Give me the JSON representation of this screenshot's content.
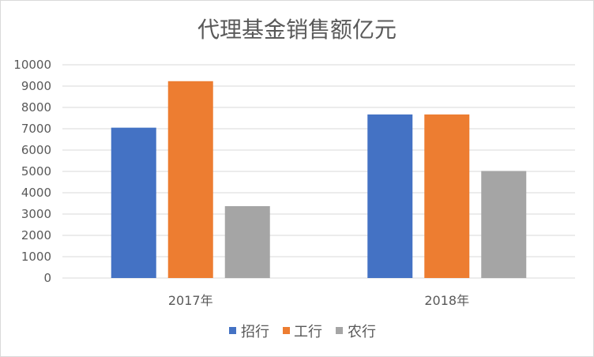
{
  "chart_data": {
    "type": "bar",
    "title": "代理基金销售额亿元",
    "categories": [
      "2017年",
      "2018年"
    ],
    "series": [
      {
        "name": "招行",
        "values": [
          7050,
          7670
        ],
        "color": "#4472c4"
      },
      {
        "name": "工行",
        "values": [
          9230,
          7670
        ],
        "color": "#ed7d31"
      },
      {
        "name": "农行",
        "values": [
          3370,
          5020
        ],
        "color": "#a5a5a5"
      }
    ],
    "ylim": [
      0,
      10000
    ],
    "yticks": [
      0,
      1000,
      2000,
      3000,
      4000,
      5000,
      6000,
      7000,
      8000,
      9000,
      10000
    ],
    "grid": true,
    "legend_position": "bottom"
  }
}
